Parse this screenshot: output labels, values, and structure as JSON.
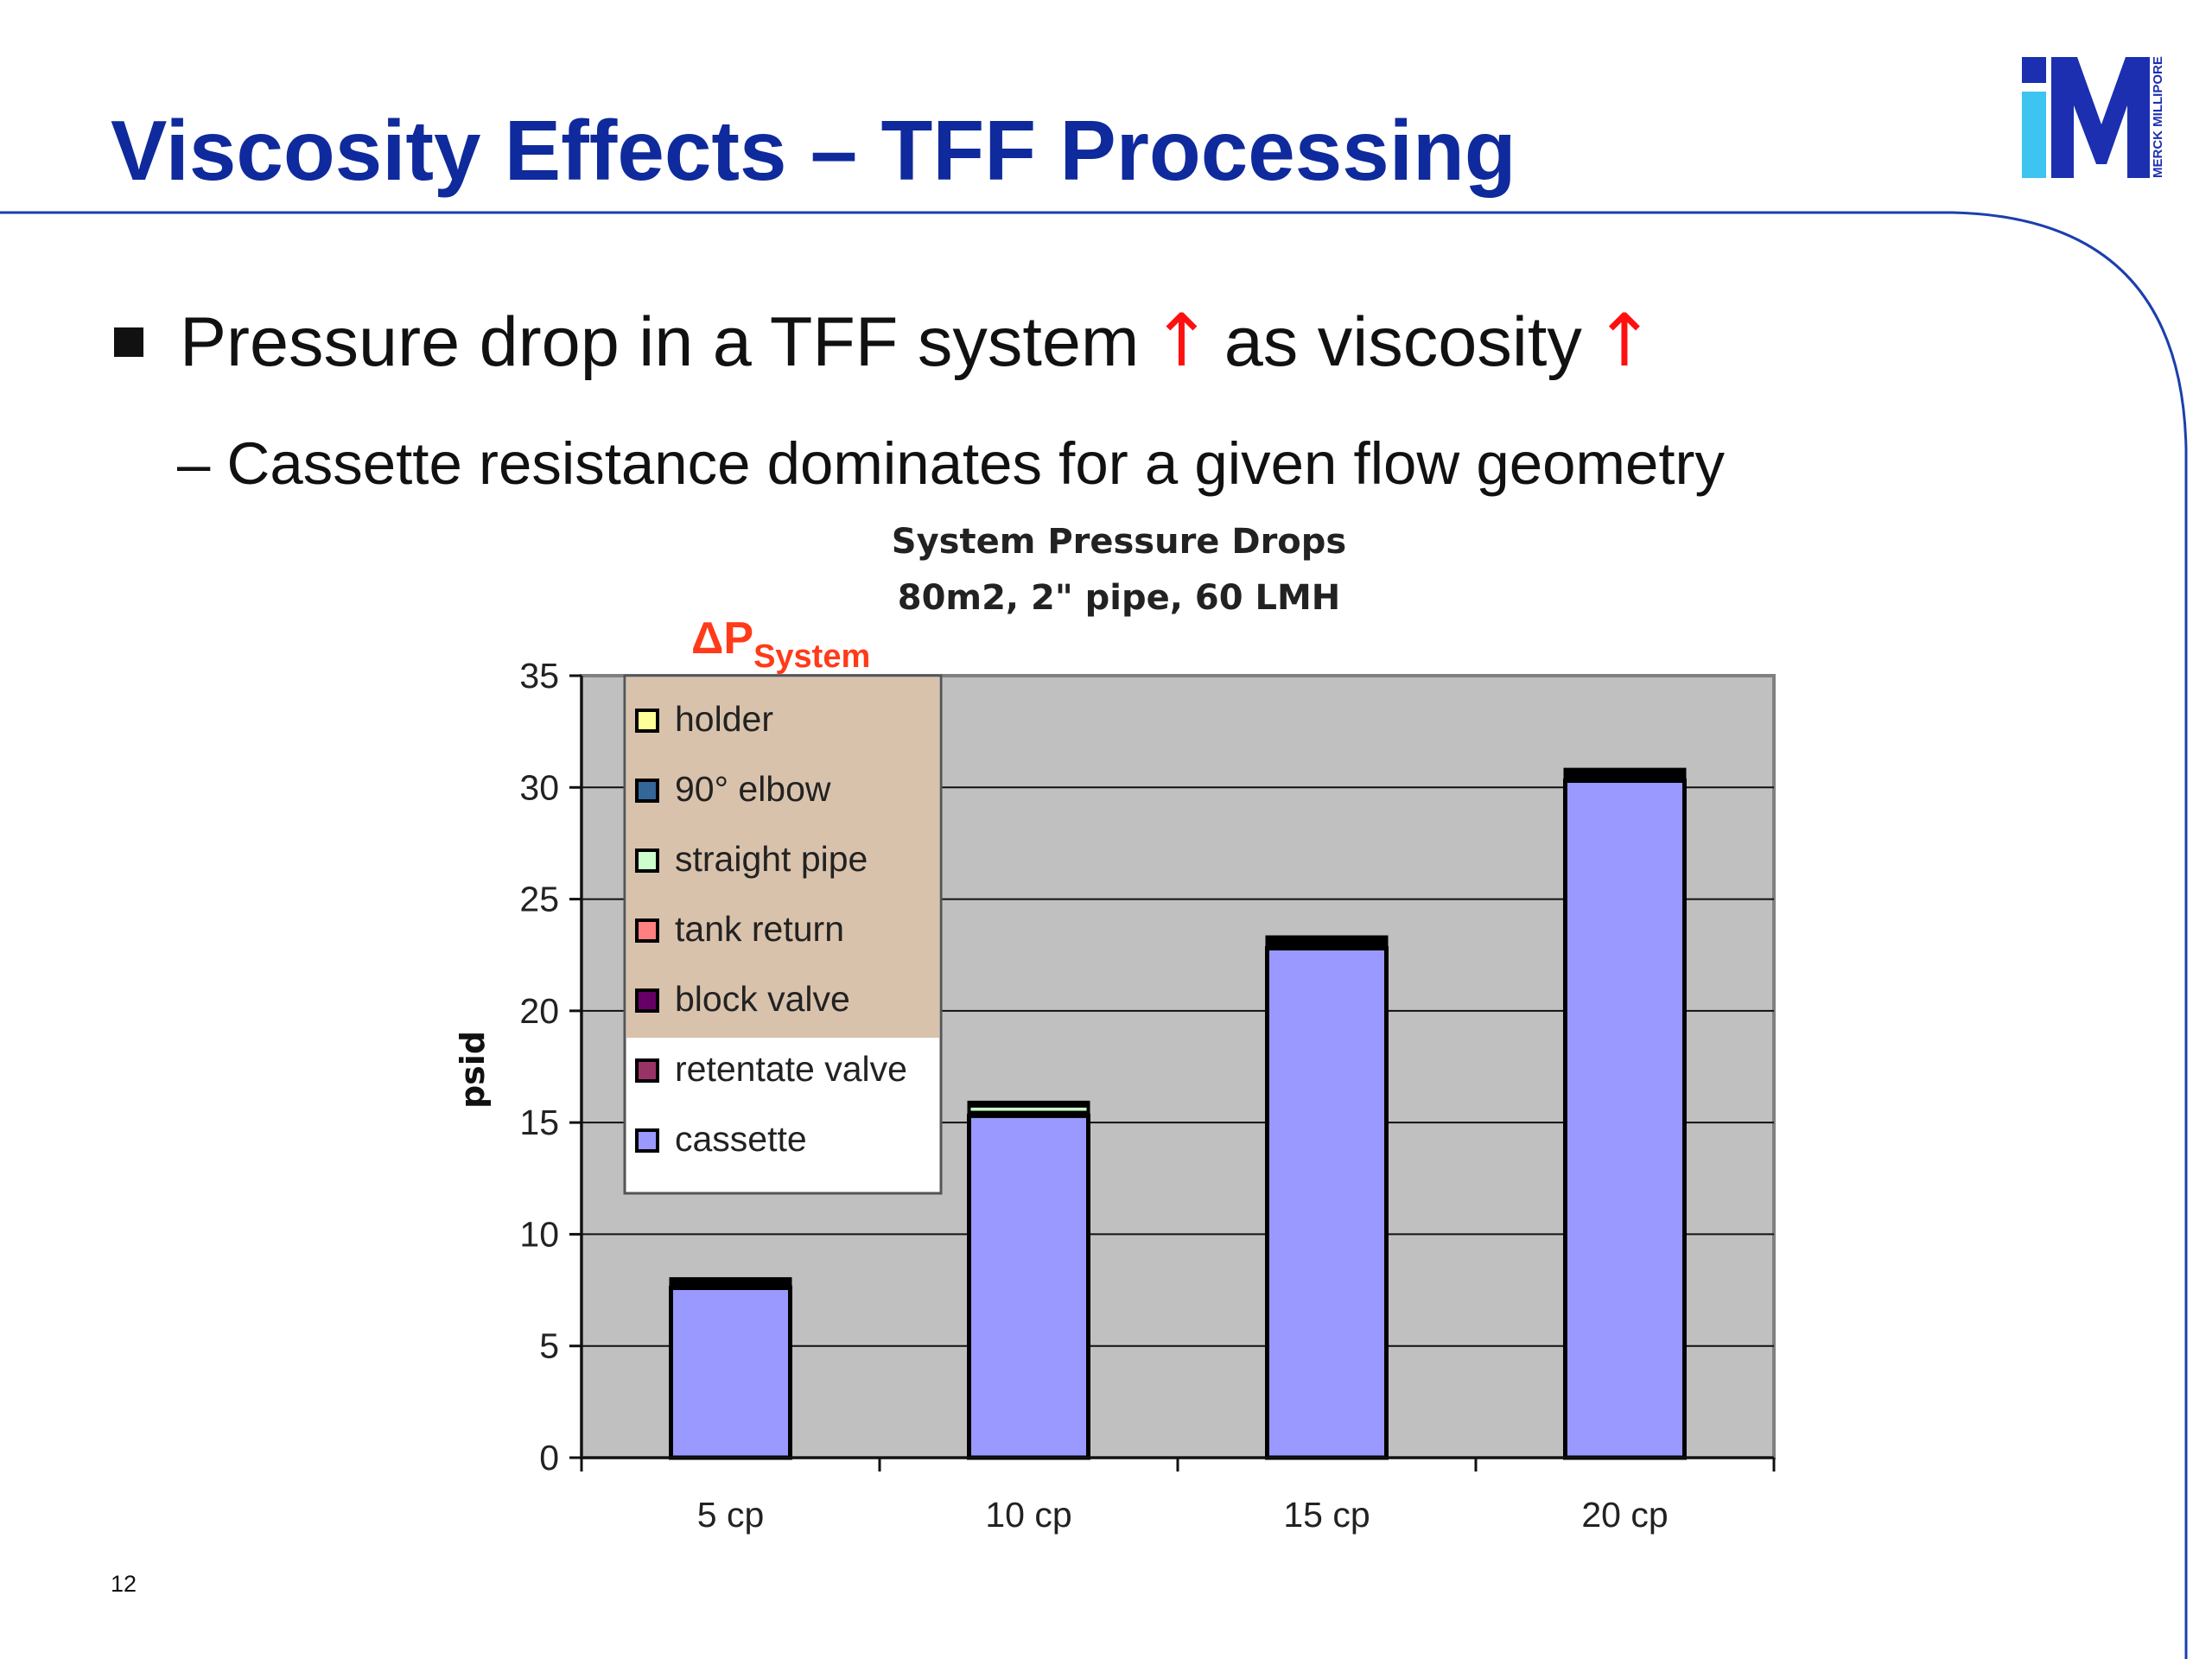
{
  "slide": {
    "title": "Viscosity Effects – TFF Processing",
    "bullet": {
      "text_1": "Pressure drop in a TFF system",
      "arrow": "↑",
      "text_2": "as viscosity"
    },
    "sub_bullet": "– Cassette resistance dominates for a given flow geometry",
    "page_number": "12",
    "logo_text": "MERCK MILLIPORE",
    "colors": {
      "title": "#0f2a9c",
      "accent_line": "#1b3fae",
      "arrow": "#ff1010",
      "logo_blue": "#1b2fb0",
      "logo_cyan": "#3ec4f0"
    }
  },
  "chart_data": {
    "type": "bar",
    "stacked": true,
    "title": "System Pressure Drops",
    "subtitle": "80m2, 2\" pipe, 60 LMH",
    "ylabel": "psid",
    "xlabel": "",
    "ylim": [
      0,
      35
    ],
    "yticks": [
      0,
      5,
      10,
      15,
      20,
      25,
      30,
      35
    ],
    "grid": true,
    "categories": [
      "5 cp",
      "10 cp",
      "15 cp",
      "20 cp"
    ],
    "series": [
      {
        "name": "cassette",
        "color": "#9999ff",
        "values": [
          7.6,
          15.3,
          22.8,
          30.3
        ]
      },
      {
        "name": "retentate valve",
        "color": "#993366",
        "values": [
          0.05,
          0.05,
          0.05,
          0.05
        ]
      },
      {
        "name": "block valve",
        "color": "#660066",
        "values": [
          0.05,
          0.05,
          0.05,
          0.05
        ]
      },
      {
        "name": "tank return",
        "color": "#ff8080",
        "values": [
          0.05,
          0.05,
          0.05,
          0.05
        ]
      },
      {
        "name": "straight pipe",
        "color": "#ccffcc",
        "values": [
          0.1,
          0.3,
          0.15,
          0.15
        ]
      },
      {
        "name": "90° elbow",
        "color": "#336699",
        "values": [
          0.05,
          0.05,
          0.05,
          0.05
        ]
      },
      {
        "name": "holder",
        "color": "#ffff99",
        "values": [
          0.1,
          0.1,
          0.15,
          0.15
        ]
      }
    ],
    "legend": {
      "position": "top-left",
      "order": [
        "holder",
        "90° elbow",
        "straight pipe",
        "tank return",
        "block valve",
        "retentate valve",
        "cassette"
      ],
      "system_group": [
        "holder",
        "90° elbow",
        "straight pipe",
        "tank return",
        "block valve"
      ],
      "system_label_main": "ΔP",
      "system_label_sub": "System",
      "system_highlight_color": "#d9c2ac"
    },
    "plot_background": "#c0c0c0"
  }
}
